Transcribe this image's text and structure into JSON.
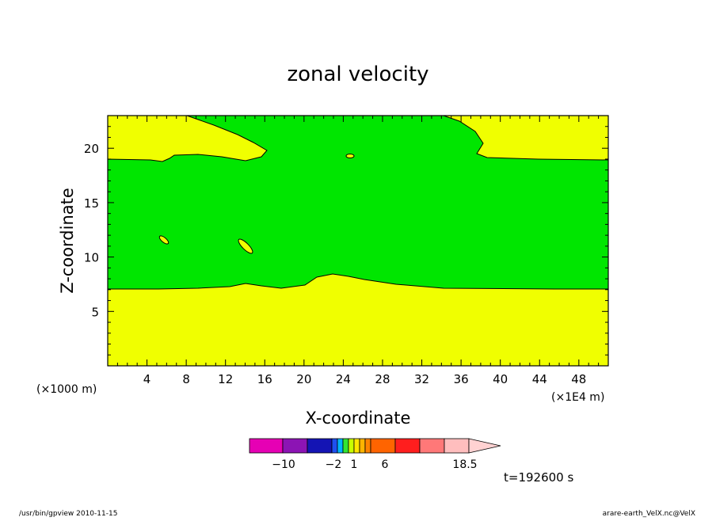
{
  "chart_data": {
    "type": "contour",
    "title": "zonal velocity",
    "xlabel": "X-coordinate",
    "ylabel": "Z-coordinate",
    "x_units_left": "(×1000 m)",
    "x_units_right": "(×1E4 m)",
    "xlim": [
      0,
      51
    ],
    "ylim": [
      0,
      23
    ],
    "x_ticks": [
      "4",
      "8",
      "12",
      "16",
      "20",
      "24",
      "28",
      "32",
      "36",
      "40",
      "44",
      "48"
    ],
    "y_ticks": [
      "5",
      "10",
      "15",
      "20"
    ],
    "time_label": "t=192600 s",
    "colorbar": {
      "labels": [
        "−10",
        "−2",
        "1",
        "6",
        "18.5"
      ],
      "colors": [
        "#e600b4",
        "#8c14b4",
        "#1414b4",
        "#1e50f0",
        "#00b4ff",
        "#32e632",
        "#c8ff00",
        "#ffe600",
        "#ffb400",
        "#ff8200",
        "#ff6400",
        "#ff1e1e",
        "#ff7878",
        "#ffbebe",
        "#ffd2d2"
      ]
    },
    "regions": [
      {
        "name": "yellow-band",
        "color": "#f0ff00"
      },
      {
        "name": "green-band",
        "color": "#00e600"
      }
    ]
  },
  "footer": {
    "left": "/usr/bin/gpview   2010-11-15",
    "right": "arare-earth_VelX.nc@VelX"
  }
}
